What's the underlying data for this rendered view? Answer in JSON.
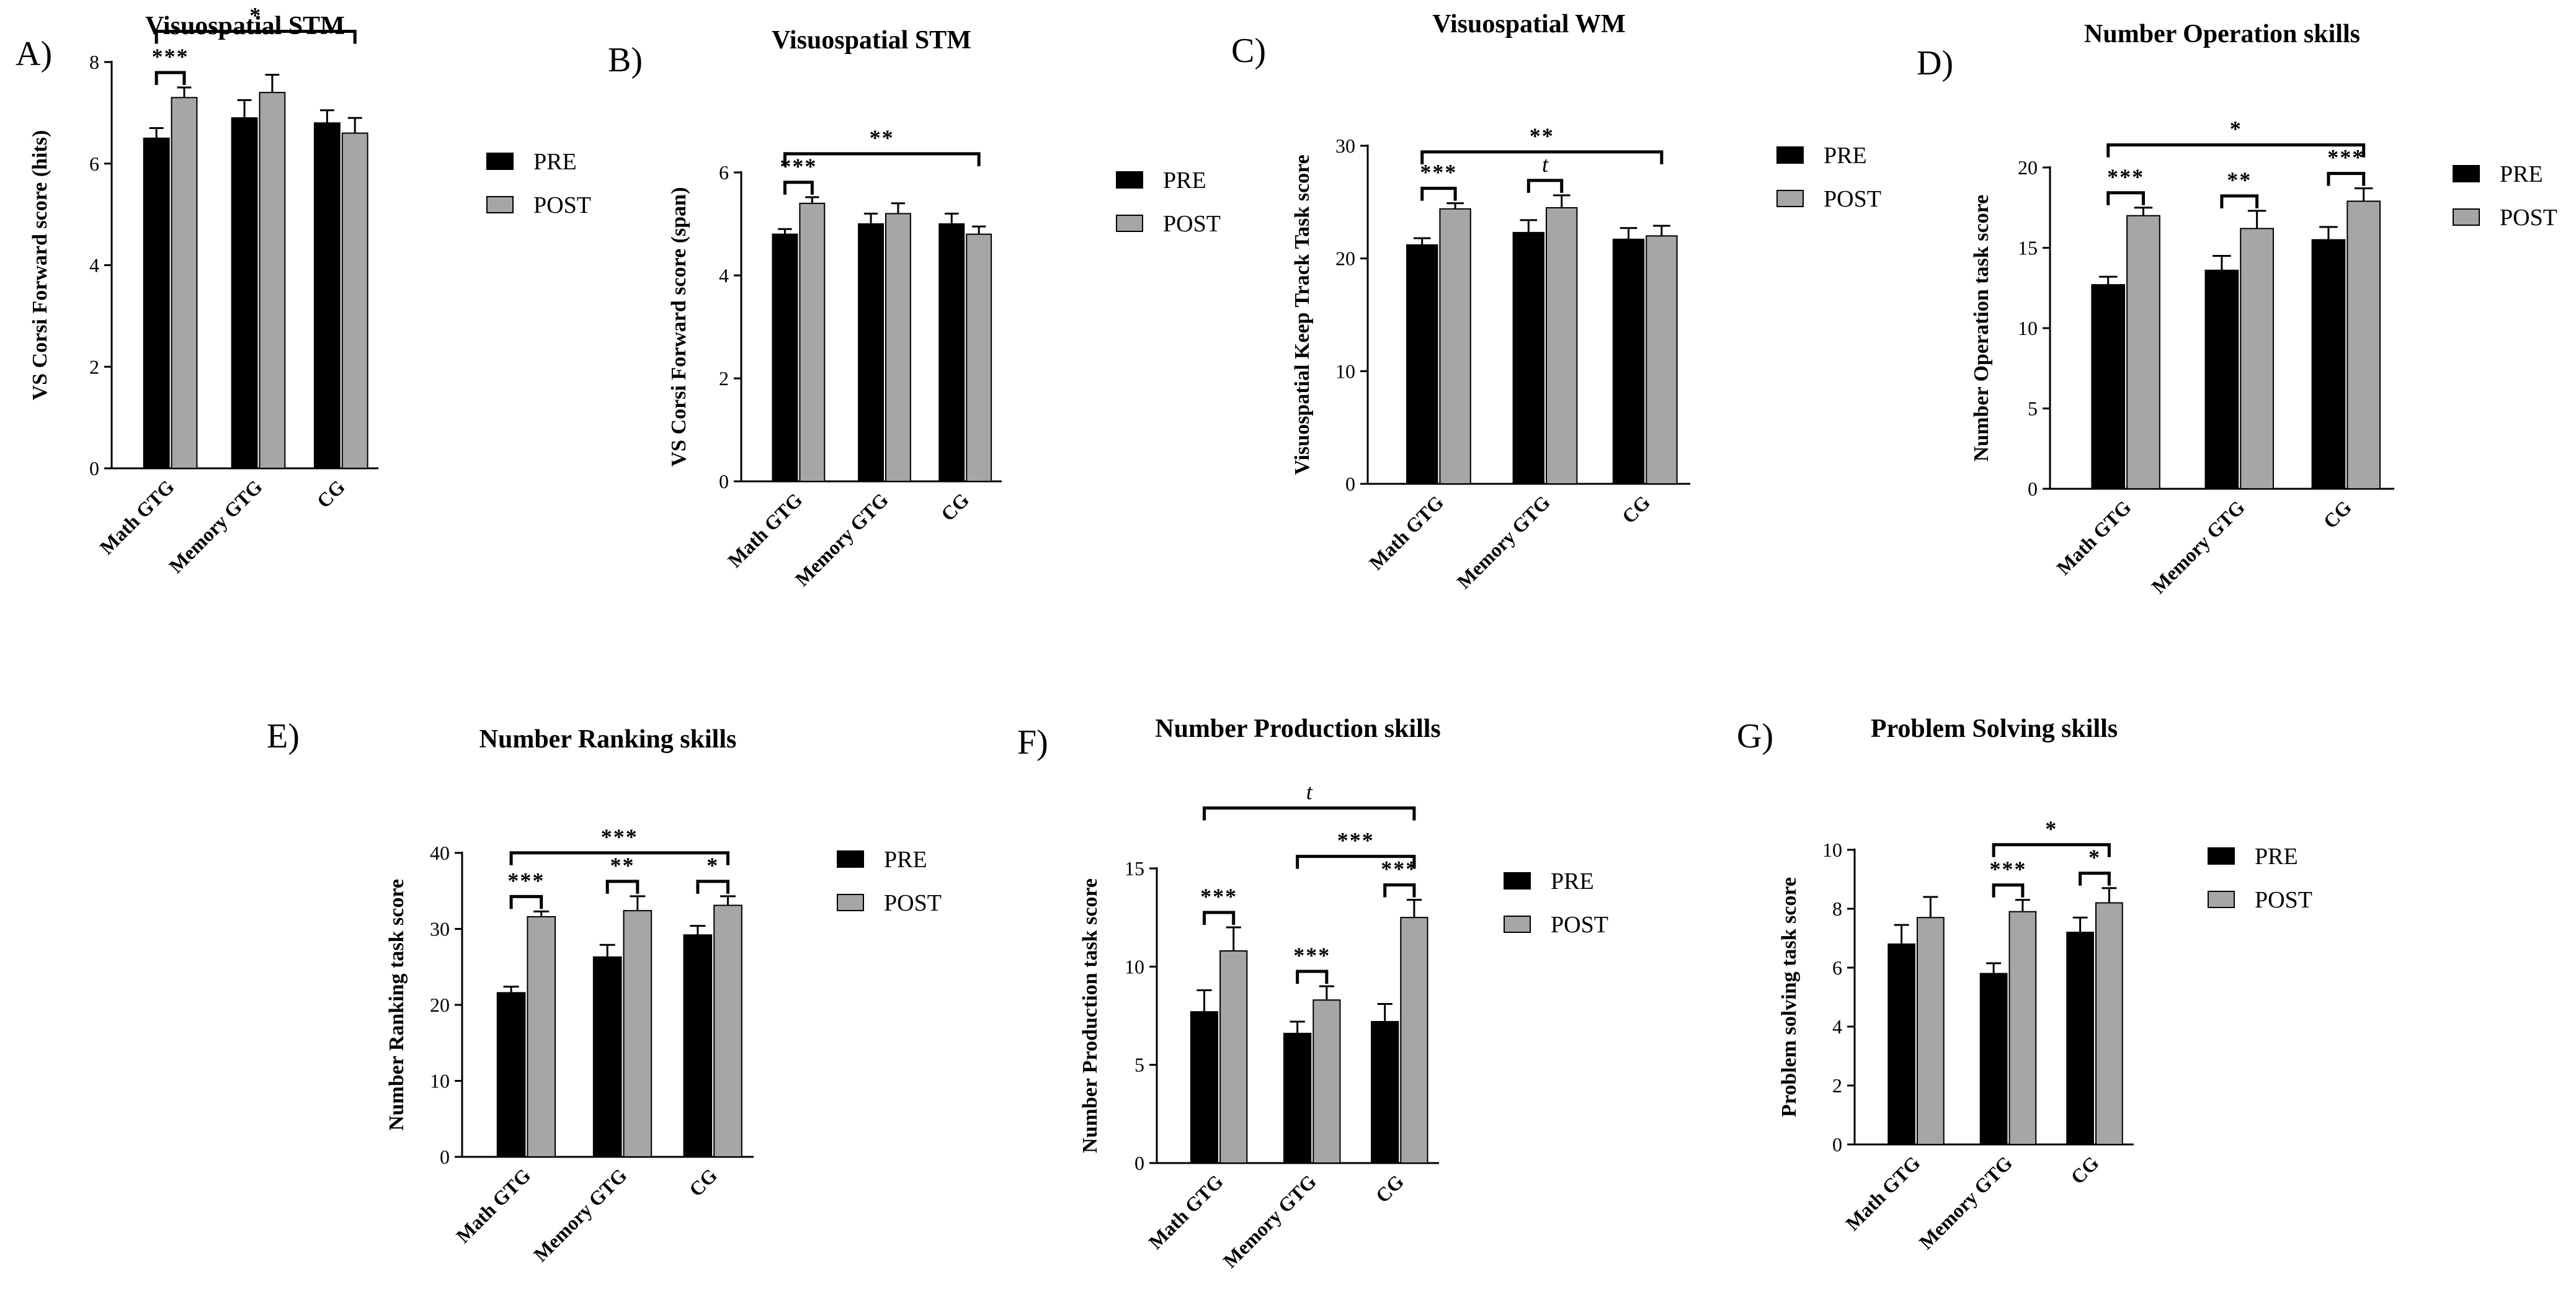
{
  "legend": {
    "pre": "PRE",
    "post": "POST"
  },
  "colors": {
    "pre": "#000000",
    "post": "#a6a6a6",
    "error": "#000000"
  },
  "chart_data": [
    {
      "panel": "A)",
      "type": "bar",
      "title": "Visuospatial STM",
      "ylabel": "VS Corsi Forward score (hits)",
      "categories": [
        "Math GTG",
        "Memory GTG",
        "CG"
      ],
      "series": [
        {
          "name": "PRE",
          "values": [
            6.5,
            6.9,
            6.8
          ],
          "errors": [
            0.2,
            0.35,
            0.25
          ]
        },
        {
          "name": "POST",
          "values": [
            7.3,
            7.4,
            6.6
          ],
          "errors": [
            0.2,
            0.35,
            0.3
          ]
        }
      ],
      "ylim": [
        0,
        8
      ],
      "yticks": [
        0,
        2,
        4,
        6,
        8
      ],
      "brackets": [
        {
          "from": 0,
          "to": 0,
          "label": "***",
          "level": 0
        },
        {
          "from": 0,
          "to": 2,
          "label": "*",
          "level": 1
        }
      ]
    },
    {
      "panel": "B)",
      "type": "bar",
      "title": "Visuospatial STM",
      "ylabel": "VS Corsi Forward score (span)",
      "categories": [
        "Math GTG",
        "Memory GTG",
        "CG"
      ],
      "series": [
        {
          "name": "PRE",
          "values": [
            4.8,
            5.0,
            5.0
          ],
          "errors": [
            0.1,
            0.2,
            0.2
          ]
        },
        {
          "name": "POST",
          "values": [
            5.4,
            5.2,
            4.8
          ],
          "errors": [
            0.12,
            0.2,
            0.15
          ]
        }
      ],
      "ylim": [
        0,
        6
      ],
      "yticks": [
        0,
        2,
        4,
        6
      ],
      "brackets": [
        {
          "from": 0,
          "to": 0,
          "label": "***",
          "level": 0
        },
        {
          "from": 0,
          "to": 2,
          "label": "**",
          "level": 1
        }
      ]
    },
    {
      "panel": "C)",
      "type": "bar",
      "title": "Visuospatial WM",
      "ylabel": "Visuospatial Keep Track Task score",
      "categories": [
        "Math GTG",
        "Memory GTG",
        "CG"
      ],
      "series": [
        {
          "name": "PRE",
          "values": [
            21.2,
            22.3,
            21.7
          ],
          "errors": [
            0.6,
            1.1,
            1.0
          ]
        },
        {
          "name": "POST",
          "values": [
            24.4,
            24.5,
            22.0
          ],
          "errors": [
            0.5,
            1.1,
            0.9
          ]
        }
      ],
      "ylim": [
        0,
        30
      ],
      "yticks": [
        0,
        10,
        20,
        30
      ],
      "brackets": [
        {
          "from": 0,
          "to": 0,
          "label": "***",
          "level": 0
        },
        {
          "from": 1,
          "to": 1,
          "label": "t",
          "level": 0,
          "italic": true
        },
        {
          "from": 0,
          "to": 2,
          "label": "**",
          "level": 1
        }
      ]
    },
    {
      "panel": "D)",
      "type": "bar",
      "title": "Number Operation skills",
      "ylabel": "Number Operation task score",
      "categories": [
        "Math GTG",
        "Memory GTG",
        "CG"
      ],
      "series": [
        {
          "name": "PRE",
          "values": [
            12.7,
            13.6,
            15.5
          ],
          "errors": [
            0.5,
            0.9,
            0.8
          ]
        },
        {
          "name": "POST",
          "values": [
            17.0,
            16.2,
            17.9
          ],
          "errors": [
            0.5,
            1.1,
            0.8
          ]
        }
      ],
      "ylim": [
        0,
        20
      ],
      "yticks": [
        0,
        5,
        10,
        15,
        20
      ],
      "brackets": [
        {
          "from": 0,
          "to": 0,
          "label": "***",
          "level": 0
        },
        {
          "from": 1,
          "to": 1,
          "label": "**",
          "level": 0
        },
        {
          "from": 2,
          "to": 2,
          "label": "***",
          "level": 0
        },
        {
          "from": 0,
          "to": 2,
          "label": "*",
          "level": 1
        }
      ]
    },
    {
      "panel": "E)",
      "type": "bar",
      "title": "Number Ranking skills",
      "ylabel": "Number Ranking task score",
      "categories": [
        "Math GTG",
        "Memory GTG",
        "CG"
      ],
      "series": [
        {
          "name": "PRE",
          "values": [
            21.6,
            26.3,
            29.2
          ],
          "errors": [
            0.8,
            1.6,
            1.2
          ]
        },
        {
          "name": "POST",
          "values": [
            31.6,
            32.4,
            33.1
          ],
          "errors": [
            0.7,
            1.9,
            1.2
          ]
        }
      ],
      "ylim": [
        0,
        40
      ],
      "yticks": [
        0,
        10,
        20,
        30,
        40
      ],
      "brackets": [
        {
          "from": 0,
          "to": 0,
          "label": "***",
          "level": 0
        },
        {
          "from": 1,
          "to": 1,
          "label": "**",
          "level": 0
        },
        {
          "from": 2,
          "to": 2,
          "label": "*",
          "level": 0
        },
        {
          "from": 0,
          "to": 2,
          "label": "***",
          "level": 1
        }
      ]
    },
    {
      "panel": "F)",
      "type": "bar",
      "title": "Number Production skills",
      "ylabel": "Number Production task score",
      "categories": [
        "Math GTG",
        "Memory GTG",
        "CG"
      ],
      "series": [
        {
          "name": "PRE",
          "values": [
            7.7,
            6.6,
            7.2
          ],
          "errors": [
            1.1,
            0.6,
            0.9
          ]
        },
        {
          "name": "POST",
          "values": [
            10.8,
            8.3,
            12.5
          ],
          "errors": [
            1.2,
            0.7,
            0.9
          ]
        }
      ],
      "ylim": [
        0,
        15
      ],
      "yticks": [
        0,
        5,
        10,
        15
      ],
      "brackets": [
        {
          "from": 0,
          "to": 0,
          "label": "***",
          "level": 0
        },
        {
          "from": 1,
          "to": 1,
          "label": "***",
          "level": 0
        },
        {
          "from": 2,
          "to": 2,
          "label": "***",
          "level": 0
        },
        {
          "from": 1,
          "to": 2,
          "label": "***",
          "level": 1
        },
        {
          "from": 0,
          "to": 2,
          "label": "t",
          "level": 2,
          "italic": true
        }
      ]
    },
    {
      "panel": "G)",
      "type": "bar",
      "title": "Problem Solving skills",
      "ylabel": "Problem solving task score",
      "categories": [
        "Math GTG",
        "Memory GTG",
        "CG"
      ],
      "series": [
        {
          "name": "PRE",
          "values": [
            6.8,
            5.8,
            7.2
          ],
          "errors": [
            0.65,
            0.35,
            0.5
          ]
        },
        {
          "name": "POST",
          "values": [
            7.7,
            7.9,
            8.2
          ],
          "errors": [
            0.7,
            0.4,
            0.5
          ]
        }
      ],
      "ylim": [
        0,
        10
      ],
      "yticks": [
        0,
        2,
        4,
        6,
        8,
        10
      ],
      "brackets": [
        {
          "from": 1,
          "to": 1,
          "label": "***",
          "level": 0
        },
        {
          "from": 2,
          "to": 2,
          "label": "*",
          "level": 0
        },
        {
          "from": 1,
          "to": 2,
          "label": "*",
          "level": 1
        }
      ]
    }
  ]
}
